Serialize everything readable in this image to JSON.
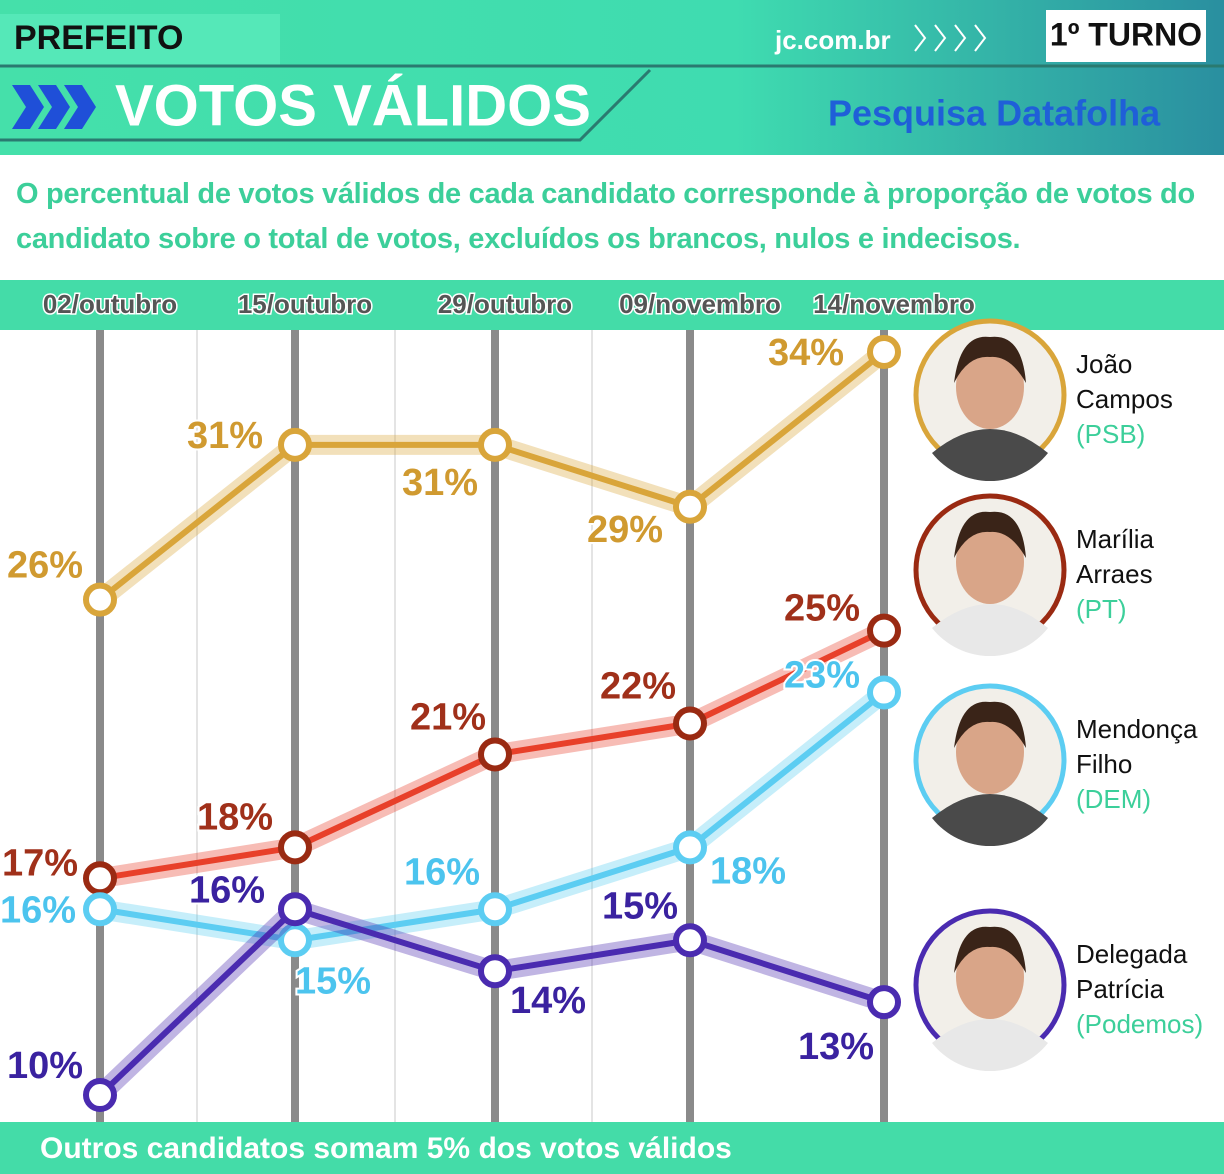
{
  "header": {
    "section": "PREFEITO",
    "site": "jc.com.br",
    "round": "1º TURNO",
    "source": "Pesquisa Datafolha"
  },
  "chart_data": {
    "type": "line",
    "title": "VOTOS VÁLIDOS",
    "subtitle": "O percentual de votos válidos de cada candidato corresponde à proporção de votos do candidato sobre o total de votos, excluídos os brancos, nulos e indecisos.",
    "categories": [
      "02/outubro",
      "15/outubro",
      "29/outubro",
      "09/novembro",
      "14/novembro"
    ],
    "ylim": [
      9,
      35
    ],
    "series": [
      {
        "name": "João Campos",
        "party": "(PSB)",
        "color": "#d9a53a",
        "values": [
          26,
          31,
          31,
          29,
          34
        ],
        "value_labels": [
          "26%",
          "31%",
          "31%",
          "29%",
          "34%"
        ]
      },
      {
        "name": "Marília Arraes",
        "party": "(PT)",
        "color": "#e8402a",
        "values": [
          17,
          18,
          21,
          22,
          25
        ],
        "value_labels": [
          "17%",
          "18%",
          "21%",
          "22%",
          "25%"
        ]
      },
      {
        "name": "Mendonça Filho",
        "party": "(DEM)",
        "color": "#5ccdf2",
        "values": [
          16,
          15,
          16,
          18,
          23
        ],
        "value_labels": [
          "16%",
          "15%",
          "16%",
          "18%",
          "23%"
        ]
      },
      {
        "name": "Delegada Patrícia",
        "party": "(Podemos)",
        "color": "#4a2bb0",
        "values": [
          10,
          16,
          14,
          15,
          13
        ],
        "value_labels": [
          "10%",
          "16%",
          "14%",
          "15%",
          "13%"
        ]
      }
    ],
    "note": "Outros candidatos somam 5% dos votos válidos"
  }
}
